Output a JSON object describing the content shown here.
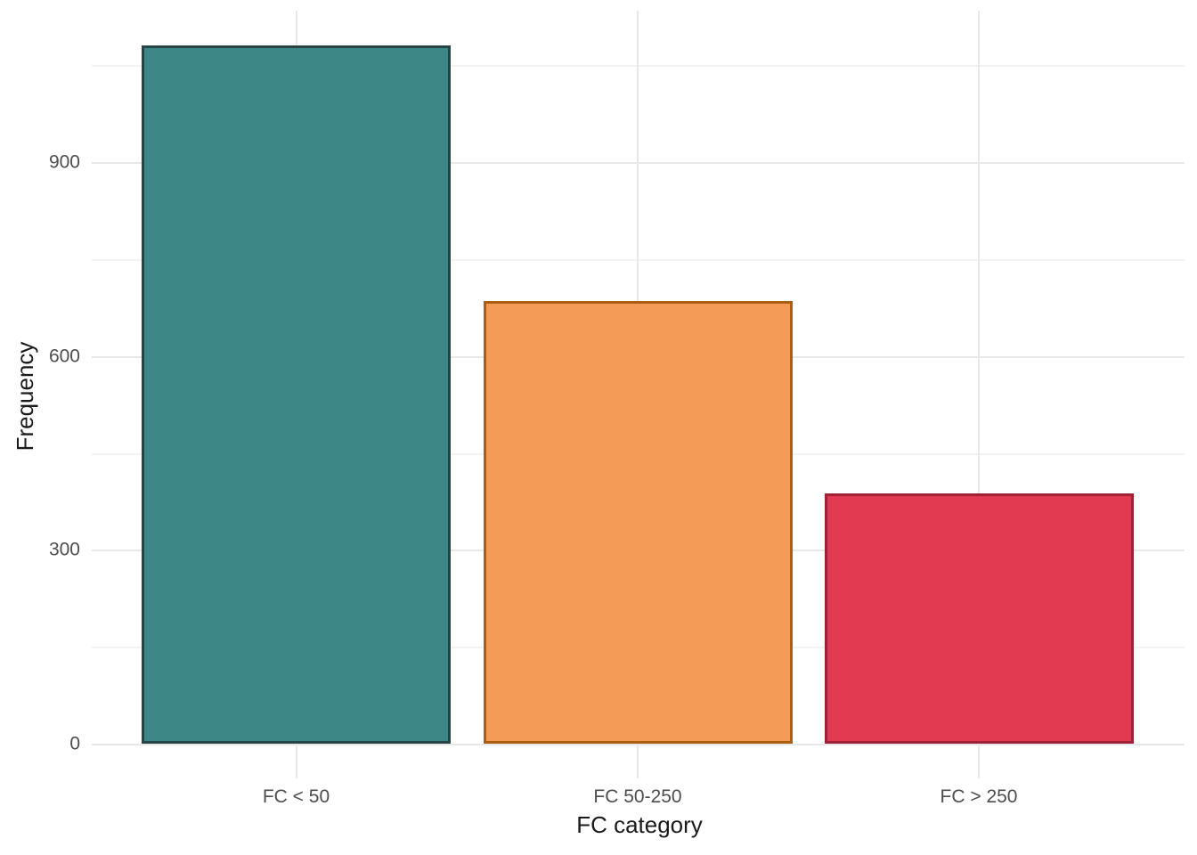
{
  "chart_data": {
    "type": "bar",
    "title": "",
    "xlabel": "FC category",
    "ylabel": "Frequency",
    "categories": [
      "FC < 50",
      "FC 50-250",
      "FC > 250"
    ],
    "values": [
      1080,
      685,
      387
    ],
    "bar_styles": [
      {
        "name": "bar-fc-lt-50",
        "fill": "#3D8787",
        "stroke": "#264443"
      },
      {
        "name": "bar-fc-50-250",
        "fill": "#F59B58",
        "stroke": "#AC5E12"
      },
      {
        "name": "bar-fc-gt-250",
        "fill": "#E23A50",
        "stroke": "#9E2138"
      }
    ],
    "ylim": [
      0,
      1134
    ],
    "y_major_ticks": [
      0,
      300,
      600,
      900
    ],
    "y_minor_gridlines": [
      150,
      450,
      750,
      1050
    ],
    "grid": true,
    "legend": "none",
    "colors": {
      "background": "#FFFFFF",
      "grid_major": "#E8E8E8",
      "grid_minor": "#F3F3F3",
      "tick_label": "#4D4D4D",
      "axis_title": "#1A1A1A"
    }
  }
}
